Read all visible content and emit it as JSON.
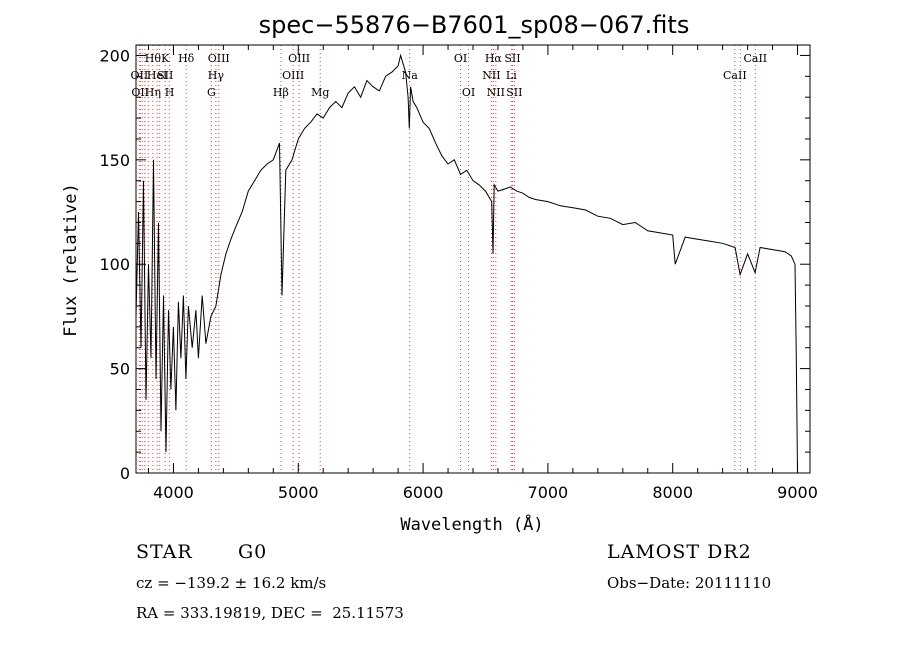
{
  "chart_data": {
    "type": "line",
    "title": "spec−55876−B7601_sp08−067.fits",
    "xlabel": "Wavelength (Å)",
    "ylabel": "Flux (relative)",
    "xlim": [
      3700,
      9100
    ],
    "ylim": [
      0,
      205
    ],
    "xticks": [
      4000,
      5000,
      6000,
      7000,
      8000,
      9000
    ],
    "yticks": [
      0,
      50,
      100,
      150,
      200
    ],
    "grid": false,
    "line_color": "#000000",
    "marker_line_color": "#e04040",
    "series": [
      {
        "x": [
          3700,
          3720,
          3740,
          3760,
          3780,
          3800,
          3820,
          3840,
          3860,
          3880,
          3900,
          3920,
          3940,
          3960,
          3980,
          4000,
          4020,
          4040,
          4060,
          4080,
          4100,
          4120,
          4150,
          4180,
          4200,
          4230,
          4260,
          4300,
          4340,
          4380,
          4420,
          4460,
          4500,
          4550,
          4600,
          4650,
          4700,
          4750,
          4800,
          4850,
          4870,
          4900,
          4950,
          5000,
          5050,
          5100,
          5150,
          5200,
          5250,
          5300,
          5350,
          5400,
          5450,
          5500,
          5550,
          5600,
          5650,
          5700,
          5750,
          5800,
          5820,
          5840,
          5860,
          5880,
          5890,
          5900,
          5920,
          5950,
          6000,
          6050,
          6100,
          6150,
          6200,
          6250,
          6300,
          6350,
          6400,
          6450,
          6500,
          6550,
          6560,
          6570,
          6600,
          6650,
          6700,
          6750,
          6800,
          6850,
          6900,
          7000,
          7100,
          7200,
          7300,
          7400,
          7500,
          7600,
          7700,
          7800,
          7900,
          8000,
          8020,
          8100,
          8200,
          8300,
          8400,
          8500,
          8540,
          8600,
          8660,
          8700,
          8800,
          8900,
          8950,
          8980,
          8990,
          9000
        ],
        "y": [
          75,
          125,
          60,
          140,
          35,
          100,
          55,
          150,
          45,
          120,
          20,
          85,
          10,
          78,
          40,
          70,
          30,
          82,
          55,
          85,
          45,
          80,
          60,
          78,
          55,
          85,
          62,
          75,
          80,
          95,
          105,
          112,
          118,
          125,
          135,
          140,
          145,
          148,
          150,
          158,
          85,
          145,
          150,
          160,
          165,
          168,
          172,
          170,
          175,
          178,
          175,
          182,
          185,
          180,
          188,
          185,
          183,
          190,
          192,
          195,
          200,
          196,
          192,
          180,
          165,
          185,
          178,
          175,
          168,
          165,
          158,
          152,
          148,
          150,
          143,
          145,
          140,
          138,
          135,
          130,
          105,
          138,
          135,
          136,
          137,
          135,
          134,
          132,
          131,
          130,
          128,
          127,
          126,
          123,
          122,
          119,
          120,
          116,
          115,
          114,
          100,
          113,
          112,
          111,
          110,
          108,
          95,
          105,
          96,
          108,
          107,
          106,
          104,
          100,
          55,
          0
        ]
      }
    ],
    "line_markers": [
      {
        "x": 3727,
        "labels": [
          {
            "row": 1,
            "text": "OII"
          }
        ]
      },
      {
        "x": 3734,
        "labels": [
          {
            "row": 2,
            "text": "OII"
          }
        ]
      },
      {
        "x": 3750,
        "labels": []
      },
      {
        "x": 3771,
        "labels": []
      },
      {
        "x": 3798,
        "labels": []
      },
      {
        "x": 3835,
        "labels": [
          {
            "row": 0,
            "text": "Hθ"
          },
          {
            "row": 2,
            "text": "Hη"
          }
        ]
      },
      {
        "x": 3869,
        "labels": [
          {
            "row": 1,
            "text": "HeI"
          }
        ]
      },
      {
        "x": 3889,
        "labels": []
      },
      {
        "x": 3934,
        "labels": [
          {
            "row": 0,
            "text": "K"
          },
          {
            "row": 1,
            "text": "SII"
          }
        ]
      },
      {
        "x": 3969,
        "labels": [
          {
            "row": 2,
            "text": "H"
          }
        ]
      },
      {
        "x": 4102,
        "labels": [
          {
            "row": 0,
            "text": "Hδ"
          }
        ]
      },
      {
        "x": 4304,
        "labels": [
          {
            "row": 2,
            "text": "G"
          }
        ]
      },
      {
        "x": 4340,
        "labels": [
          {
            "row": 1,
            "text": "Hγ"
          }
        ]
      },
      {
        "x": 4363,
        "labels": [
          {
            "row": 0,
            "text": "OIII"
          }
        ]
      },
      {
        "x": 4861,
        "labels": [
          {
            "row": 2,
            "text": "Hβ"
          }
        ]
      },
      {
        "x": 4959,
        "labels": [
          {
            "row": 1,
            "text": "OIII"
          }
        ]
      },
      {
        "x": 5007,
        "labels": [
          {
            "row": 0,
            "text": "OIII"
          }
        ]
      },
      {
        "x": 5176,
        "labels": [
          {
            "row": 2,
            "text": "Mg"
          }
        ]
      },
      {
        "x": 5893,
        "labels": [
          {
            "row": 1,
            "text": "Na"
          }
        ]
      },
      {
        "x": 6300,
        "labels": [
          {
            "row": 0,
            "text": "OI"
          }
        ]
      },
      {
        "x": 6364,
        "labels": [
          {
            "row": 2,
            "text": "OI"
          }
        ]
      },
      {
        "x": 6548,
        "labels": [
          {
            "row": 1,
            "text": "NII"
          }
        ]
      },
      {
        "x": 6563,
        "labels": [
          {
            "row": 0,
            "text": "Hα"
          }
        ]
      },
      {
        "x": 6583,
        "labels": [
          {
            "row": 2,
            "text": "NII"
          }
        ]
      },
      {
        "x": 6707,
        "labels": [
          {
            "row": 1,
            "text": "Li"
          }
        ]
      },
      {
        "x": 6716,
        "labels": [
          {
            "row": 0,
            "text": "SII"
          }
        ]
      },
      {
        "x": 6731,
        "labels": [
          {
            "row": 2,
            "text": "SII"
          }
        ]
      },
      {
        "x": 8498,
        "labels": [
          {
            "row": 1,
            "text": "CaII"
          }
        ]
      },
      {
        "x": 8542,
        "labels": []
      },
      {
        "x": 8662,
        "labels": [
          {
            "row": 0,
            "text": "CaII"
          }
        ]
      }
    ]
  },
  "info": {
    "class": "STAR",
    "subclass": "G0",
    "survey": "LAMOST DR2",
    "cz": "cz = −139.2 ± 16.2 km/s",
    "obs_date": "Obs−Date: 20111110",
    "coords": "RA = 333.19819, DEC =  25.11573"
  }
}
